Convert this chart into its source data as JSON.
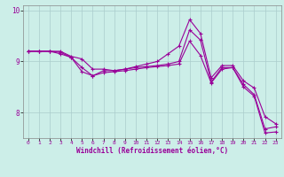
{
  "xlabel": "Windchill (Refroidissement éolien,°C)",
  "bg_color": "#cceee8",
  "line_color": "#990099",
  "grid_color": "#aacccc",
  "x_values": [
    0,
    1,
    2,
    3,
    4,
    5,
    6,
    7,
    8,
    9,
    10,
    11,
    12,
    13,
    14,
    15,
    16,
    17,
    18,
    19,
    20,
    21,
    22,
    23
  ],
  "line1": [
    9.2,
    9.2,
    9.2,
    9.2,
    9.1,
    9.05,
    8.85,
    8.85,
    8.82,
    8.85,
    8.9,
    8.95,
    9.0,
    9.15,
    9.3,
    9.82,
    9.55,
    8.68,
    8.92,
    8.92,
    8.62,
    8.48,
    7.92,
    7.78
  ],
  "line2": [
    9.2,
    9.2,
    9.2,
    9.18,
    9.08,
    8.88,
    8.72,
    8.82,
    8.82,
    8.85,
    8.88,
    8.9,
    8.92,
    8.95,
    9.0,
    9.62,
    9.42,
    8.6,
    8.88,
    8.88,
    8.55,
    8.35,
    7.68,
    7.72
  ],
  "line3": [
    9.2,
    9.2,
    9.2,
    9.15,
    9.08,
    8.8,
    8.72,
    8.78,
    8.8,
    8.82,
    8.85,
    8.88,
    8.9,
    8.92,
    8.95,
    9.4,
    9.12,
    8.58,
    8.85,
    8.88,
    8.5,
    8.32,
    7.6,
    7.62
  ],
  "ylim": [
    7.5,
    10.1
  ],
  "yticks": [
    8,
    9,
    10
  ],
  "xticks": [
    0,
    1,
    2,
    3,
    4,
    5,
    6,
    7,
    8,
    9,
    10,
    11,
    12,
    13,
    14,
    15,
    16,
    17,
    18,
    19,
    20,
    21,
    22,
    23
  ]
}
